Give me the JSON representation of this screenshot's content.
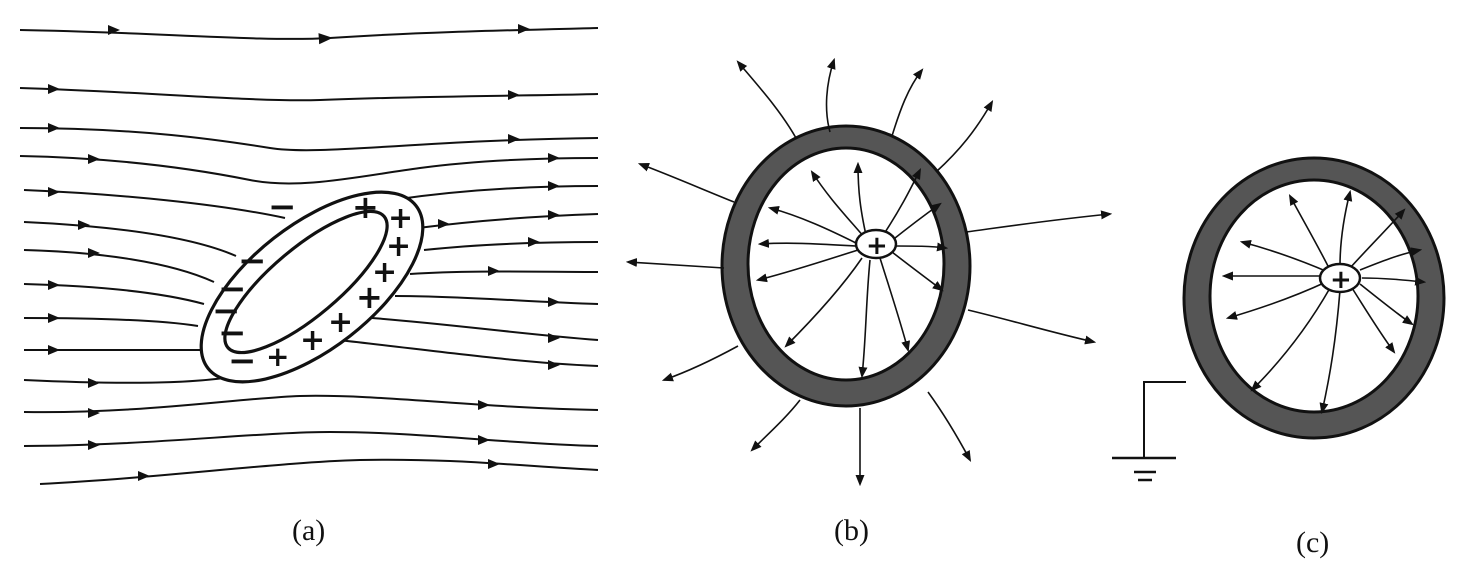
{
  "figure": {
    "panels": [
      {
        "id": "a",
        "caption": "(a)",
        "neg_sign": "−",
        "pos_sign": "+"
      },
      {
        "id": "b",
        "caption": "(b)",
        "center_charge": "+"
      },
      {
        "id": "c",
        "caption": "(c)",
        "center_charge": "+",
        "ground_symbol": "ground"
      }
    ],
    "colors": {
      "ink": "#111111",
      "shell_fill": "#555555",
      "background": "#ffffff"
    }
  }
}
